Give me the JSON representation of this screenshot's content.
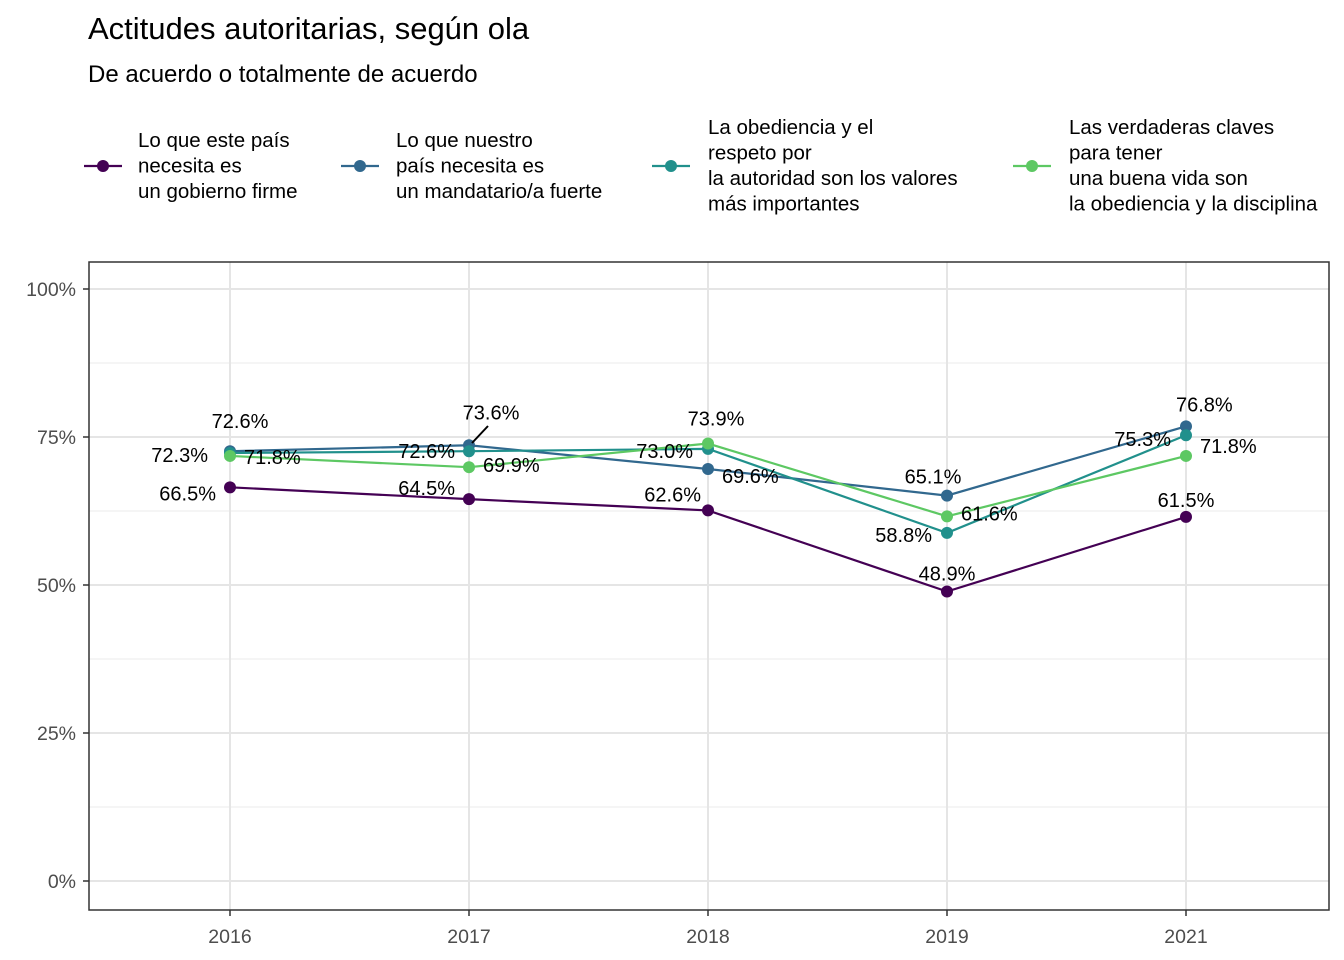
{
  "chart_data": {
    "type": "line",
    "title": "Actitudes autoritarias, según ola",
    "subtitle": "De acuerdo o totalmente de acuerdo",
    "xlabel": "",
    "ylabel": "",
    "categories": [
      "2016",
      "2017",
      "2018",
      "2019",
      "2021"
    ],
    "y_ticks": [
      "0%",
      "25%",
      "50%",
      "75%",
      "100%"
    ],
    "ylim": [
      0,
      1.05
    ],
    "grid": true,
    "legend_position": "top",
    "series": [
      {
        "name": " Lo que este país\nnecesita es\nun gobierno firme",
        "color": "#440154",
        "values": [
          0.665,
          0.645,
          0.626,
          0.489,
          0.615
        ],
        "labels": [
          "66.5%",
          "64.5%",
          "62.6%",
          "48.9%",
          "61.5%"
        ]
      },
      {
        "name": " Lo que nuestro\npaís necesita es\nun mandatario/a fuerte",
        "color": "#31688E",
        "values": [
          0.726,
          0.736,
          0.696,
          0.651,
          0.768
        ],
        "labels": [
          "72.6%",
          "73.6%",
          "69.6%",
          "65.1%",
          "76.8%"
        ]
      },
      {
        "name": " La obediencia y el\nrespeto por\nla autoridad son los valores\nmás importantes",
        "color": "#21908C",
        "values": [
          0.723,
          0.726,
          0.73,
          0.588,
          0.753
        ],
        "labels": [
          "72.3%",
          "72.6%",
          "73.0%",
          "58.8%",
          "75.3%"
        ]
      },
      {
        "name": " Las verdaderas claves\npara tener\nuna buena vida son\nla obediencia y la disciplina",
        "color": "#5DC863",
        "values": [
          0.718,
          0.699,
          0.739,
          0.616,
          0.718
        ],
        "labels": [
          "71.8%",
          "69.9%",
          "73.9%",
          "61.6%",
          "71.8%"
        ]
      }
    ]
  }
}
